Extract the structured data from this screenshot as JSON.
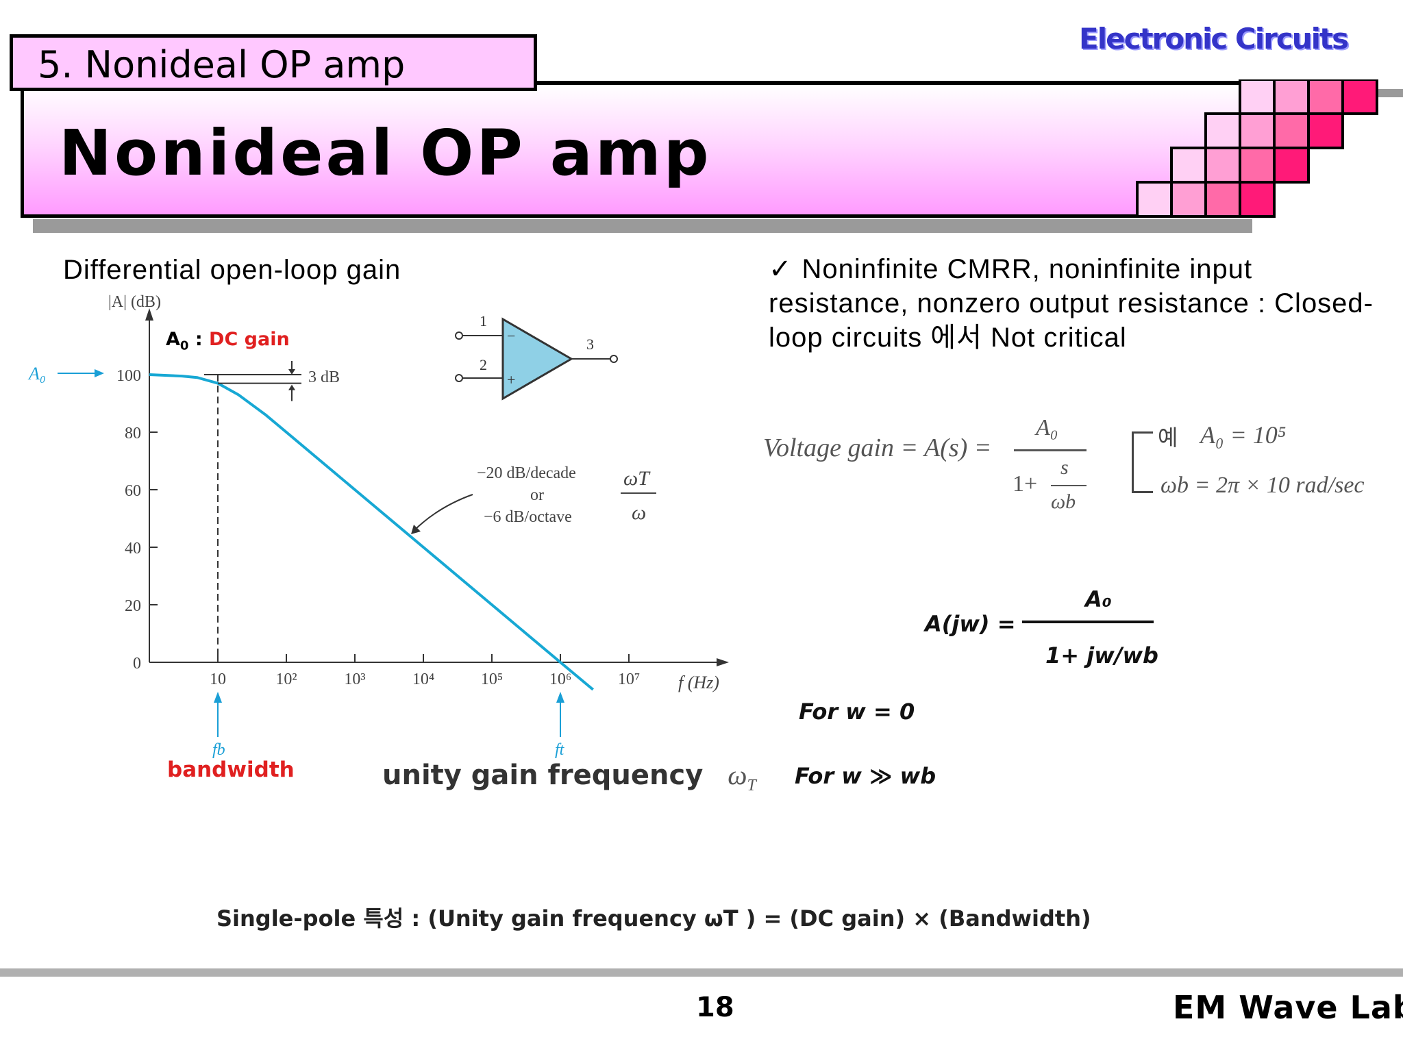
{
  "header": {
    "brand": "Electronic Circuits",
    "section_tab": "5. Nonideal OP amp",
    "title": "Nonideal OP amp"
  },
  "left": {
    "section_label": "Differential open-loop gain",
    "callout_a0": "A",
    "callout_a0_sub": "0",
    "callout_colon": " : ",
    "callout_dc": "DC gain",
    "bandwidth_label": "bandwidth",
    "unity_label": "unity gain frequency",
    "unity_symbol": "ω",
    "unity_symbol_sub": "T"
  },
  "opamp": {
    "pin1": "1",
    "pin2": "2",
    "pin3": "3",
    "minus": "−",
    "plus": "+"
  },
  "chart_data": {
    "type": "line",
    "title": "",
    "xlabel": "f (Hz)",
    "ylabel": "|A| (dB)",
    "x_scale": "log",
    "x_ticks": [
      "10",
      "10²",
      "10³",
      "10⁴",
      "10⁵",
      "10⁶",
      "10⁷"
    ],
    "y_ticks": [
      "0",
      "20",
      "40",
      "60",
      "80",
      "100"
    ],
    "ylim": [
      0,
      100
    ],
    "series": [
      {
        "x": [
          1,
          3,
          5,
          10,
          20,
          50,
          100,
          1000,
          10000,
          100000,
          1000000,
          3000000
        ],
        "y": [
          100,
          99.5,
          99,
          97,
          93,
          86,
          80,
          60,
          40,
          20,
          0,
          -9.5
        ]
      }
    ],
    "annotations": {
      "a0_arrow": "A₀",
      "three_db": "3 dB",
      "slope_line1": "−20 dB/decade",
      "slope_line2": "or",
      "slope_line3": "−6 dB/octave",
      "ratio_num": "ωT",
      "ratio_den": "ω",
      "fb": "fb",
      "ft": "ft"
    }
  },
  "right": {
    "bullet_mark": "✓",
    "bullet_text": "Noninfinite CMRR, noninfinite input resistance, nonzero output resistance : Closed-loop circuits 에서  Not critical",
    "voltage_gain_lhs": "Voltage gain = A(s) =",
    "vg_num": "A₀",
    "vg_den_prefix": "1+",
    "vg_den_num": "s",
    "vg_den_den": "ωb",
    "example_label": "예",
    "example_a0": "A₀ = 10⁵",
    "example_wb": "ωb = 2π × 10 rad/sec",
    "ajw_lhs": "A(jw)  =",
    "ajw_num": "A₀",
    "ajw_den": "1+ jw/wb",
    "case1": "For w = 0",
    "case2": "For w ≫ wb"
  },
  "bottom": {
    "formula": "Single-pole 특성  : (Unity gain frequency  ωT ) = (DC gain)  ×  (Bandwidth)"
  },
  "footer": {
    "page": "18",
    "lab": "EM Wave Lab"
  },
  "colors": {
    "curve": "#17a8d4",
    "arrow_cyan": "#1a9fd6",
    "red": "#e02020",
    "brand_blue": "#3434c8"
  }
}
